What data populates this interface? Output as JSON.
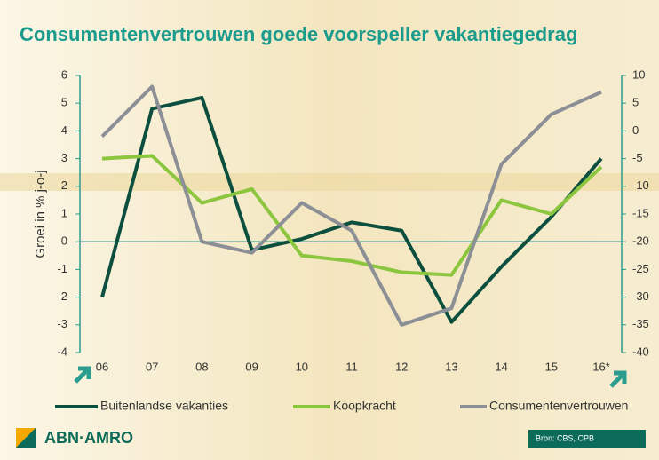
{
  "chart_data": {
    "type": "line",
    "title": "Consumentenvertrouwen goede voorspeller vakantiegedrag",
    "y_label": "Groei in % j-o-j",
    "categories": [
      "06",
      "07",
      "08",
      "09",
      "10",
      "11",
      "12",
      "13",
      "14",
      "15",
      "16*"
    ],
    "series": [
      {
        "name": "Buitenlandse vakanties",
        "color": "#0d4f3e",
        "values": [
          -2.0,
          4.8,
          5.2,
          -0.3,
          0.1,
          0.7,
          0.4,
          -2.9,
          -0.9,
          0.9,
          3.0
        ]
      },
      {
        "name": "Koopkracht",
        "color": "#8cc63f",
        "values": [
          3.0,
          3.1,
          1.4,
          1.9,
          -0.5,
          -0.7,
          -1.1,
          -1.2,
          1.5,
          1.0,
          2.7
        ]
      },
      {
        "name": "Consumentenvertrouwen",
        "color": "#8c8f95",
        "axis": "y2",
        "values": [
          -1,
          8,
          -20,
          -22,
          -13,
          -18,
          -35,
          -32,
          -6,
          3,
          7
        ]
      }
    ],
    "ylim": [
      -4,
      6
    ],
    "yticks": [
      -4,
      -3,
      -2,
      -1,
      0,
      1,
      2,
      3,
      4,
      5,
      6
    ],
    "y2lim": [
      -40,
      10
    ],
    "y2ticks": [
      -40,
      -35,
      -30,
      -25,
      -20,
      -15,
      -10,
      -5,
      0,
      5,
      10
    ],
    "source": "Bron: CBS, CPB",
    "logo": "ABN·AMRO"
  }
}
